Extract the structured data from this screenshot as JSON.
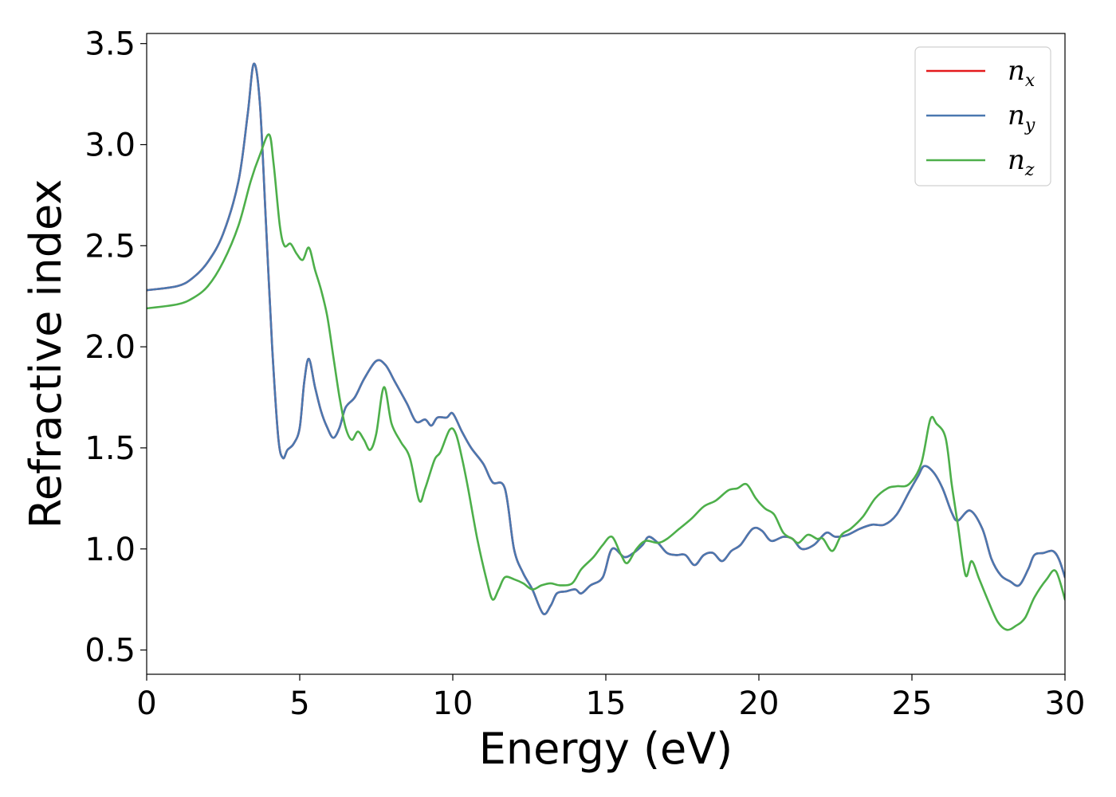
{
  "chart_data": {
    "type": "line",
    "xlabel": "Energy (eV)",
    "ylabel": "Refractive index",
    "xlim": [
      0,
      30
    ],
    "ylim": [
      0.38,
      3.55
    ],
    "xticks": [
      "0",
      "5",
      "10",
      "15",
      "20",
      "25",
      "30"
    ],
    "yticks": [
      "0.5",
      "1.0",
      "1.5",
      "2.0",
      "2.5",
      "3.0",
      "3.5"
    ],
    "grid": false,
    "legend_position": "top-right",
    "series": [
      {
        "name": "n_x",
        "label_base": "n",
        "label_sub": "x",
        "color": "#e41a1c",
        "points": [
          [
            0,
            2.28
          ],
          [
            1,
            2.3
          ],
          [
            1.5,
            2.34
          ],
          [
            2,
            2.42
          ],
          [
            2.5,
            2.56
          ],
          [
            3,
            2.82
          ],
          [
            3.3,
            3.15
          ],
          [
            3.5,
            3.4
          ],
          [
            3.7,
            3.2
          ],
          [
            3.9,
            2.6
          ],
          [
            4.1,
            2.0
          ],
          [
            4.3,
            1.55
          ],
          [
            4.45,
            1.45
          ],
          [
            4.6,
            1.49
          ],
          [
            4.8,
            1.52
          ],
          [
            5.0,
            1.6
          ],
          [
            5.15,
            1.83
          ],
          [
            5.3,
            1.94
          ],
          [
            5.5,
            1.8
          ],
          [
            5.7,
            1.68
          ],
          [
            5.9,
            1.6
          ],
          [
            6.1,
            1.55
          ],
          [
            6.3,
            1.6
          ],
          [
            6.5,
            1.7
          ],
          [
            6.8,
            1.75
          ],
          [
            7.1,
            1.84
          ],
          [
            7.5,
            1.93
          ],
          [
            7.8,
            1.91
          ],
          [
            8.1,
            1.83
          ],
          [
            8.5,
            1.72
          ],
          [
            8.8,
            1.63
          ],
          [
            9.1,
            1.64
          ],
          [
            9.3,
            1.61
          ],
          [
            9.5,
            1.65
          ],
          [
            9.8,
            1.65
          ],
          [
            10.0,
            1.67
          ],
          [
            10.3,
            1.58
          ],
          [
            10.6,
            1.5
          ],
          [
            11.0,
            1.42
          ],
          [
            11.3,
            1.33
          ],
          [
            11.7,
            1.3
          ],
          [
            12.0,
            1.0
          ],
          [
            12.3,
            0.88
          ],
          [
            12.6,
            0.8
          ],
          [
            12.95,
            0.68
          ],
          [
            13.2,
            0.72
          ],
          [
            13.4,
            0.78
          ],
          [
            13.7,
            0.79
          ],
          [
            14.0,
            0.8
          ],
          [
            14.2,
            0.78
          ],
          [
            14.5,
            0.82
          ],
          [
            14.9,
            0.86
          ],
          [
            15.2,
            1.0
          ],
          [
            15.6,
            0.96
          ],
          [
            15.9,
            0.98
          ],
          [
            16.2,
            1.02
          ],
          [
            16.4,
            1.06
          ],
          [
            16.7,
            1.03
          ],
          [
            17.0,
            0.98
          ],
          [
            17.3,
            0.97
          ],
          [
            17.6,
            0.97
          ],
          [
            17.9,
            0.92
          ],
          [
            18.2,
            0.97
          ],
          [
            18.5,
            0.98
          ],
          [
            18.8,
            0.94
          ],
          [
            19.1,
            0.99
          ],
          [
            19.4,
            1.02
          ],
          [
            19.8,
            1.1
          ],
          [
            20.1,
            1.09
          ],
          [
            20.4,
            1.04
          ],
          [
            20.8,
            1.06
          ],
          [
            21.1,
            1.05
          ],
          [
            21.4,
            1.0
          ],
          [
            21.8,
            1.02
          ],
          [
            22.2,
            1.08
          ],
          [
            22.5,
            1.06
          ],
          [
            22.9,
            1.07
          ],
          [
            23.3,
            1.1
          ],
          [
            23.7,
            1.12
          ],
          [
            24.1,
            1.12
          ],
          [
            24.5,
            1.17
          ],
          [
            24.9,
            1.28
          ],
          [
            25.2,
            1.36
          ],
          [
            25.4,
            1.41
          ],
          [
            25.7,
            1.38
          ],
          [
            26.0,
            1.3
          ],
          [
            26.3,
            1.18
          ],
          [
            26.5,
            1.14
          ],
          [
            26.9,
            1.19
          ],
          [
            27.3,
            1.1
          ],
          [
            27.6,
            0.95
          ],
          [
            27.9,
            0.87
          ],
          [
            28.2,
            0.84
          ],
          [
            28.5,
            0.82
          ],
          [
            28.8,
            0.9
          ],
          [
            29.0,
            0.97
          ],
          [
            29.3,
            0.98
          ],
          [
            29.6,
            0.99
          ],
          [
            29.8,
            0.95
          ],
          [
            30,
            0.86
          ]
        ]
      },
      {
        "name": "n_y",
        "label_base": "n",
        "label_sub": "y",
        "color": "#4a78b0",
        "points": [
          [
            0,
            2.28
          ],
          [
            1,
            2.3
          ],
          [
            1.5,
            2.34
          ],
          [
            2,
            2.42
          ],
          [
            2.5,
            2.56
          ],
          [
            3,
            2.82
          ],
          [
            3.3,
            3.15
          ],
          [
            3.5,
            3.4
          ],
          [
            3.7,
            3.2
          ],
          [
            3.9,
            2.6
          ],
          [
            4.1,
            2.0
          ],
          [
            4.3,
            1.55
          ],
          [
            4.45,
            1.45
          ],
          [
            4.6,
            1.49
          ],
          [
            4.8,
            1.52
          ],
          [
            5.0,
            1.6
          ],
          [
            5.15,
            1.83
          ],
          [
            5.3,
            1.94
          ],
          [
            5.5,
            1.8
          ],
          [
            5.7,
            1.68
          ],
          [
            5.9,
            1.6
          ],
          [
            6.1,
            1.55
          ],
          [
            6.3,
            1.6
          ],
          [
            6.5,
            1.7
          ],
          [
            6.8,
            1.75
          ],
          [
            7.1,
            1.84
          ],
          [
            7.5,
            1.93
          ],
          [
            7.8,
            1.91
          ],
          [
            8.1,
            1.83
          ],
          [
            8.5,
            1.72
          ],
          [
            8.8,
            1.63
          ],
          [
            9.1,
            1.64
          ],
          [
            9.3,
            1.61
          ],
          [
            9.5,
            1.65
          ],
          [
            9.8,
            1.65
          ],
          [
            10.0,
            1.67
          ],
          [
            10.3,
            1.58
          ],
          [
            10.6,
            1.5
          ],
          [
            11.0,
            1.42
          ],
          [
            11.3,
            1.33
          ],
          [
            11.7,
            1.3
          ],
          [
            12.0,
            1.0
          ],
          [
            12.3,
            0.88
          ],
          [
            12.6,
            0.8
          ],
          [
            12.95,
            0.68
          ],
          [
            13.2,
            0.72
          ],
          [
            13.4,
            0.78
          ],
          [
            13.7,
            0.79
          ],
          [
            14.0,
            0.8
          ],
          [
            14.2,
            0.78
          ],
          [
            14.5,
            0.82
          ],
          [
            14.9,
            0.86
          ],
          [
            15.2,
            1.0
          ],
          [
            15.6,
            0.96
          ],
          [
            15.9,
            0.98
          ],
          [
            16.2,
            1.02
          ],
          [
            16.4,
            1.06
          ],
          [
            16.7,
            1.03
          ],
          [
            17.0,
            0.98
          ],
          [
            17.3,
            0.97
          ],
          [
            17.6,
            0.97
          ],
          [
            17.9,
            0.92
          ],
          [
            18.2,
            0.97
          ],
          [
            18.5,
            0.98
          ],
          [
            18.8,
            0.94
          ],
          [
            19.1,
            0.99
          ],
          [
            19.4,
            1.02
          ],
          [
            19.8,
            1.1
          ],
          [
            20.1,
            1.09
          ],
          [
            20.4,
            1.04
          ],
          [
            20.8,
            1.06
          ],
          [
            21.1,
            1.05
          ],
          [
            21.4,
            1.0
          ],
          [
            21.8,
            1.02
          ],
          [
            22.2,
            1.08
          ],
          [
            22.5,
            1.06
          ],
          [
            22.9,
            1.07
          ],
          [
            23.3,
            1.1
          ],
          [
            23.7,
            1.12
          ],
          [
            24.1,
            1.12
          ],
          [
            24.5,
            1.17
          ],
          [
            24.9,
            1.28
          ],
          [
            25.2,
            1.36
          ],
          [
            25.4,
            1.41
          ],
          [
            25.7,
            1.38
          ],
          [
            26.0,
            1.3
          ],
          [
            26.3,
            1.18
          ],
          [
            26.5,
            1.14
          ],
          [
            26.9,
            1.19
          ],
          [
            27.3,
            1.1
          ],
          [
            27.6,
            0.95
          ],
          [
            27.9,
            0.87
          ],
          [
            28.2,
            0.84
          ],
          [
            28.5,
            0.82
          ],
          [
            28.8,
            0.9
          ],
          [
            29.0,
            0.97
          ],
          [
            29.3,
            0.98
          ],
          [
            29.6,
            0.99
          ],
          [
            29.8,
            0.95
          ],
          [
            30,
            0.86
          ]
        ]
      },
      {
        "name": "n_z",
        "label_base": "n",
        "label_sub": "z",
        "color": "#4daf4a",
        "points": [
          [
            0,
            2.19
          ],
          [
            1,
            2.21
          ],
          [
            1.5,
            2.24
          ],
          [
            2,
            2.3
          ],
          [
            2.5,
            2.42
          ],
          [
            3,
            2.6
          ],
          [
            3.4,
            2.82
          ],
          [
            3.7,
            2.95
          ],
          [
            4.0,
            3.05
          ],
          [
            4.15,
            2.9
          ],
          [
            4.35,
            2.6
          ],
          [
            4.5,
            2.5
          ],
          [
            4.7,
            2.51
          ],
          [
            4.9,
            2.46
          ],
          [
            5.1,
            2.43
          ],
          [
            5.3,
            2.49
          ],
          [
            5.5,
            2.38
          ],
          [
            5.7,
            2.28
          ],
          [
            5.9,
            2.15
          ],
          [
            6.1,
            1.95
          ],
          [
            6.3,
            1.75
          ],
          [
            6.5,
            1.6
          ],
          [
            6.7,
            1.54
          ],
          [
            6.9,
            1.58
          ],
          [
            7.1,
            1.54
          ],
          [
            7.3,
            1.49
          ],
          [
            7.5,
            1.57
          ],
          [
            7.75,
            1.8
          ],
          [
            8.0,
            1.62
          ],
          [
            8.3,
            1.53
          ],
          [
            8.6,
            1.45
          ],
          [
            8.9,
            1.24
          ],
          [
            9.1,
            1.3
          ],
          [
            9.4,
            1.44
          ],
          [
            9.6,
            1.48
          ],
          [
            9.9,
            1.59
          ],
          [
            10.1,
            1.57
          ],
          [
            10.3,
            1.45
          ],
          [
            10.5,
            1.3
          ],
          [
            10.8,
            1.05
          ],
          [
            11.1,
            0.85
          ],
          [
            11.3,
            0.75
          ],
          [
            11.5,
            0.8
          ],
          [
            11.7,
            0.86
          ],
          [
            12.0,
            0.85
          ],
          [
            12.3,
            0.83
          ],
          [
            12.6,
            0.8
          ],
          [
            12.9,
            0.82
          ],
          [
            13.2,
            0.83
          ],
          [
            13.5,
            0.82
          ],
          [
            13.9,
            0.83
          ],
          [
            14.2,
            0.9
          ],
          [
            14.6,
            0.96
          ],
          [
            14.9,
            1.02
          ],
          [
            15.2,
            1.06
          ],
          [
            15.5,
            0.97
          ],
          [
            15.7,
            0.93
          ],
          [
            16.0,
            1.0
          ],
          [
            16.3,
            1.04
          ],
          [
            16.7,
            1.03
          ],
          [
            17.0,
            1.05
          ],
          [
            17.4,
            1.1
          ],
          [
            17.8,
            1.15
          ],
          [
            18.2,
            1.21
          ],
          [
            18.6,
            1.24
          ],
          [
            19.0,
            1.29
          ],
          [
            19.3,
            1.3
          ],
          [
            19.6,
            1.32
          ],
          [
            19.9,
            1.25
          ],
          [
            20.2,
            1.2
          ],
          [
            20.5,
            1.17
          ],
          [
            20.8,
            1.08
          ],
          [
            21.1,
            1.05
          ],
          [
            21.3,
            1.03
          ],
          [
            21.6,
            1.07
          ],
          [
            21.9,
            1.05
          ],
          [
            22.1,
            1.05
          ],
          [
            22.4,
            0.99
          ],
          [
            22.7,
            1.07
          ],
          [
            23.0,
            1.1
          ],
          [
            23.4,
            1.16
          ],
          [
            23.8,
            1.25
          ],
          [
            24.2,
            1.3
          ],
          [
            24.5,
            1.31
          ],
          [
            24.9,
            1.32
          ],
          [
            25.3,
            1.42
          ],
          [
            25.6,
            1.64
          ],
          [
            25.8,
            1.62
          ],
          [
            26.1,
            1.55
          ],
          [
            26.3,
            1.32
          ],
          [
            26.5,
            1.12
          ],
          [
            26.75,
            0.87
          ],
          [
            26.95,
            0.94
          ],
          [
            27.2,
            0.85
          ],
          [
            27.5,
            0.74
          ],
          [
            27.8,
            0.64
          ],
          [
            28.1,
            0.6
          ],
          [
            28.4,
            0.62
          ],
          [
            28.7,
            0.66
          ],
          [
            29.0,
            0.76
          ],
          [
            29.4,
            0.85
          ],
          [
            29.7,
            0.89
          ],
          [
            30,
            0.75
          ]
        ]
      }
    ]
  }
}
